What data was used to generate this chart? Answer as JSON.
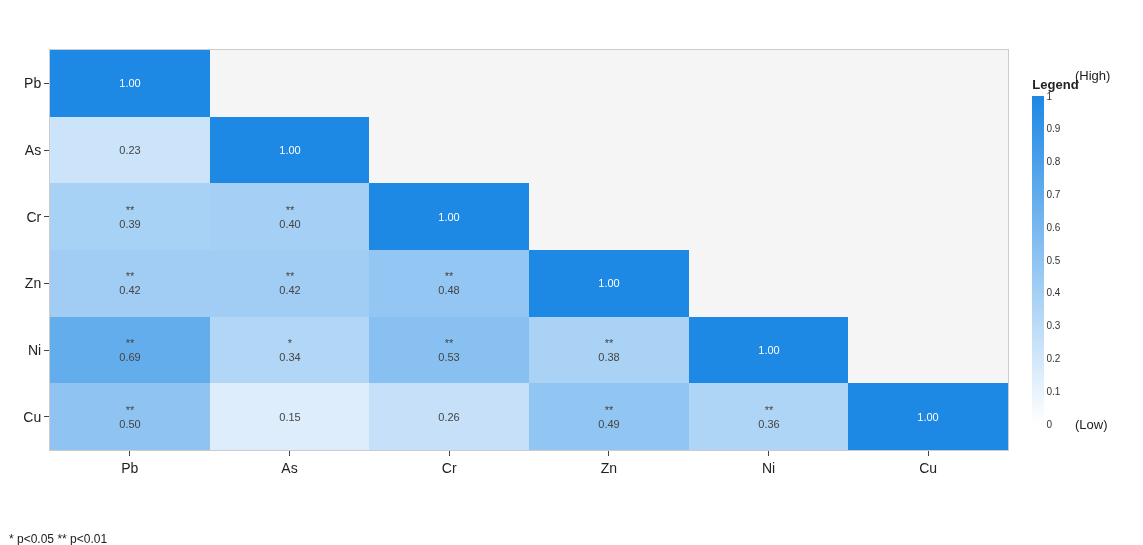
{
  "chart_data": {
    "type": "heatmap",
    "clabel": "Legend",
    "categories": [
      "Pb",
      "As",
      "Cr",
      "Zn",
      "Ni",
      "Cu"
    ],
    "y_categories": [
      "Pb",
      "As",
      "Cr",
      "Zn",
      "Ni",
      "Cu"
    ],
    "cells": [
      [
        1,
        null,
        null,
        null,
        null,
        null
      ],
      [
        0.23,
        1,
        null,
        null,
        null,
        null
      ],
      [
        0.39,
        0.4,
        1,
        null,
        null,
        null
      ],
      [
        0.42,
        0.42,
        0.48,
        1,
        null,
        null
      ],
      [
        0.69,
        0.34,
        0.53,
        0.38,
        1,
        null
      ],
      [
        0.5,
        0.15,
        0.26,
        0.49,
        0.36,
        1
      ]
    ],
    "cell_labels": [
      [
        "1.00",
        null,
        null,
        null,
        null,
        null
      ],
      [
        "0.23",
        "1.00",
        null,
        null,
        null,
        null
      ],
      [
        "**\n0.39",
        "**\n0.40",
        "1.00",
        null,
        null,
        null
      ],
      [
        "**\n0.42",
        "**\n0.42",
        "**\n0.48",
        "1.00",
        null,
        null
      ],
      [
        "**\n0.69",
        "*\n0.34",
        "**\n0.53",
        "**\n0.38",
        "1.00",
        null
      ],
      [
        "**\n0.50",
        "0.15",
        "0.26",
        "**\n0.49",
        "**\n0.36",
        "1.00"
      ]
    ],
    "colors": [
      "#ffffff",
      "#1e88e5"
    ],
    "clim": [
      0,
      1
    ],
    "cticks": [
      0,
      0.1,
      0.2,
      0.3,
      0.4,
      0.5,
      0.6,
      0.7,
      0.8,
      0.9,
      1
    ],
    "annotations": [
      "(Low)",
      "(High)",
      "* p<0.05 ** p<0.01"
    ]
  }
}
